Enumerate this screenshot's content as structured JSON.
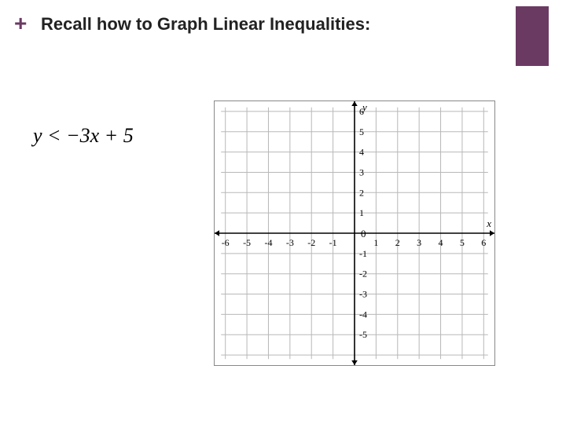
{
  "accent_color": "#6b3a63",
  "plus_color": "#6b3a63",
  "title": "Recall how to Graph Linear Inequalities:",
  "formula": "y < −3x + 5",
  "graph": {
    "type": "scatter",
    "background_color": "#ffffff",
    "grid_color": "#b8b8b8",
    "axis_color": "#000000",
    "tick_font_size": 12,
    "tick_font_family": "Times New Roman",
    "xlim": [
      -6.5,
      6.5
    ],
    "ylim": [
      -6.5,
      6.5
    ],
    "xticks": [
      -6,
      -5,
      -4,
      -3,
      -2,
      -1,
      0,
      1,
      2,
      3,
      4,
      5,
      6
    ],
    "xtick_labels": [
      "-6",
      "-5",
      "-4",
      "-3",
      "-2",
      "-1",
      "0",
      "1",
      "2",
      "3",
      "4",
      "5",
      "6"
    ],
    "yticks": [
      -5,
      -4,
      -3,
      -2,
      -1,
      1,
      2,
      3,
      4,
      5,
      6
    ],
    "ytick_labels": [
      "-5",
      "-4",
      "-3",
      "-2",
      "-1",
      "1",
      "2",
      "3",
      "4",
      "5",
      "6"
    ],
    "x_axis_label": "x",
    "y_axis_label": "y",
    "arrowheads": true
  }
}
